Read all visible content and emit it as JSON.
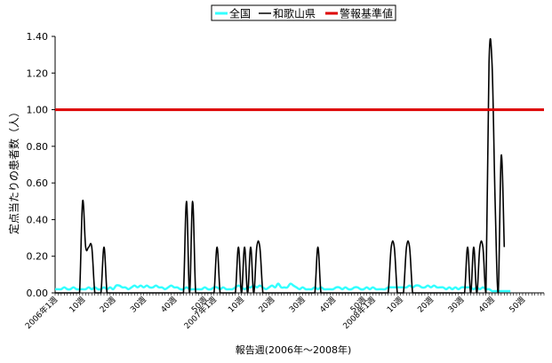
{
  "chart_data": {
    "type": "line",
    "title": "",
    "xlabel": "報告週(2006年～2008年)",
    "ylabel": "定点当たりの患者数（人）",
    "ylim": [
      0,
      1.4
    ],
    "yticks": [
      "0.00",
      "0.20",
      "0.40",
      "0.60",
      "0.80",
      "1.00",
      "1.20",
      "1.40"
    ],
    "xlim": [
      1,
      161
    ],
    "x_ticks": [
      {
        "x": 1,
        "label": "2006年1週"
      },
      {
        "x": 10,
        "label": "10週"
      },
      {
        "x": 20,
        "label": "20週"
      },
      {
        "x": 30,
        "label": "30週"
      },
      {
        "x": 40,
        "label": "40週"
      },
      {
        "x": 50,
        "label": "50週"
      },
      {
        "x": 53,
        "label": "2007年1週"
      },
      {
        "x": 62,
        "label": "10週"
      },
      {
        "x": 72,
        "label": "20週"
      },
      {
        "x": 82,
        "label": "30週"
      },
      {
        "x": 92,
        "label": "40週"
      },
      {
        "x": 102,
        "label": "50週"
      },
      {
        "x": 105,
        "label": "2008年1週"
      },
      {
        "x": 114,
        "label": "10週"
      },
      {
        "x": 124,
        "label": "20週"
      },
      {
        "x": 134,
        "label": "30週"
      },
      {
        "x": 144,
        "label": "40週"
      },
      {
        "x": 154,
        "label": "50週"
      }
    ],
    "legend": "top",
    "grid": false,
    "series": [
      {
        "name": "全国",
        "color": "#33ffff",
        "values": [
          0.02,
          0.02,
          0.02,
          0.03,
          0.02,
          0.02,
          0.03,
          0.02,
          0.02,
          0.02,
          0.02,
          0.03,
          0.02,
          0.03,
          0.02,
          0.02,
          0.03,
          0.02,
          0.03,
          0.02,
          0.04,
          0.04,
          0.03,
          0.03,
          0.02,
          0.03,
          0.04,
          0.03,
          0.04,
          0.03,
          0.04,
          0.03,
          0.03,
          0.04,
          0.03,
          0.03,
          0.02,
          0.03,
          0.04,
          0.03,
          0.03,
          0.02,
          0.02,
          0.03,
          0.02,
          0.02,
          0.02,
          0.02,
          0.02,
          0.03,
          0.02,
          0.02,
          0.03,
          0.03,
          0.02,
          0.03,
          0.02,
          0.02,
          0.02,
          0.03,
          0.04,
          0.03,
          0.02,
          0.03,
          0.03,
          0.04,
          0.03,
          0.04,
          0.03,
          0.02,
          0.03,
          0.04,
          0.03,
          0.05,
          0.03,
          0.03,
          0.03,
          0.05,
          0.04,
          0.03,
          0.02,
          0.03,
          0.02,
          0.02,
          0.02,
          0.03,
          0.02,
          0.03,
          0.02,
          0.02,
          0.02,
          0.02,
          0.03,
          0.03,
          0.02,
          0.03,
          0.02,
          0.02,
          0.03,
          0.03,
          0.02,
          0.02,
          0.03,
          0.02,
          0.03,
          0.02,
          0.02,
          0.02,
          0.02,
          0.03,
          0.03,
          0.03,
          0.03,
          0.03,
          0.03,
          0.03,
          0.04,
          0.03,
          0.04,
          0.04,
          0.03,
          0.03,
          0.04,
          0.03,
          0.04,
          0.03,
          0.03,
          0.03,
          0.02,
          0.03,
          0.02,
          0.03,
          0.02,
          0.03,
          0.03,
          0.03,
          0.03,
          0.02,
          0.03,
          0.02,
          0.03,
          0.02,
          0.02,
          0.01,
          0.01,
          0.01,
          0.01,
          0.01,
          0.01,
          0.01
        ]
      },
      {
        "name": "和歌山県",
        "color": "#000000",
        "values": [
          0,
          0,
          0,
          0,
          0,
          0,
          0,
          0,
          0,
          0.5,
          0.25,
          0.25,
          0.25,
          0,
          0,
          0,
          0.25,
          0,
          0,
          0,
          0,
          0,
          0,
          0,
          0,
          0,
          0,
          0,
          0,
          0,
          0,
          0,
          0,
          0,
          0,
          0,
          0,
          0,
          0,
          0,
          0,
          0,
          0,
          0.5,
          0,
          0.5,
          0,
          0,
          0,
          0,
          0,
          0,
          0,
          0.25,
          0,
          0,
          0,
          0,
          0,
          0,
          0.25,
          0,
          0.25,
          0,
          0.25,
          0,
          0.25,
          0.25,
          0,
          0,
          0,
          0,
          0,
          0,
          0,
          0,
          0,
          0,
          0,
          0,
          0,
          0,
          0,
          0,
          0,
          0,
          0.25,
          0,
          0,
          0,
          0,
          0,
          0,
          0,
          0,
          0,
          0,
          0,
          0,
          0,
          0,
          0,
          0,
          0,
          0,
          0,
          0,
          0,
          0,
          0,
          0.25,
          0.25,
          0,
          0,
          0,
          0.25,
          0.25,
          0,
          0,
          0,
          0,
          0,
          0,
          0,
          0,
          0,
          0,
          0,
          0,
          0,
          0,
          0,
          0,
          0,
          0,
          0.25,
          0,
          0.25,
          0,
          0.25,
          0.25,
          0,
          1.25,
          1.25,
          0.5,
          0,
          0.75,
          0.25
        ]
      },
      {
        "name": "警報基準値",
        "color": "#dd0000",
        "constant": 1.0
      }
    ]
  }
}
